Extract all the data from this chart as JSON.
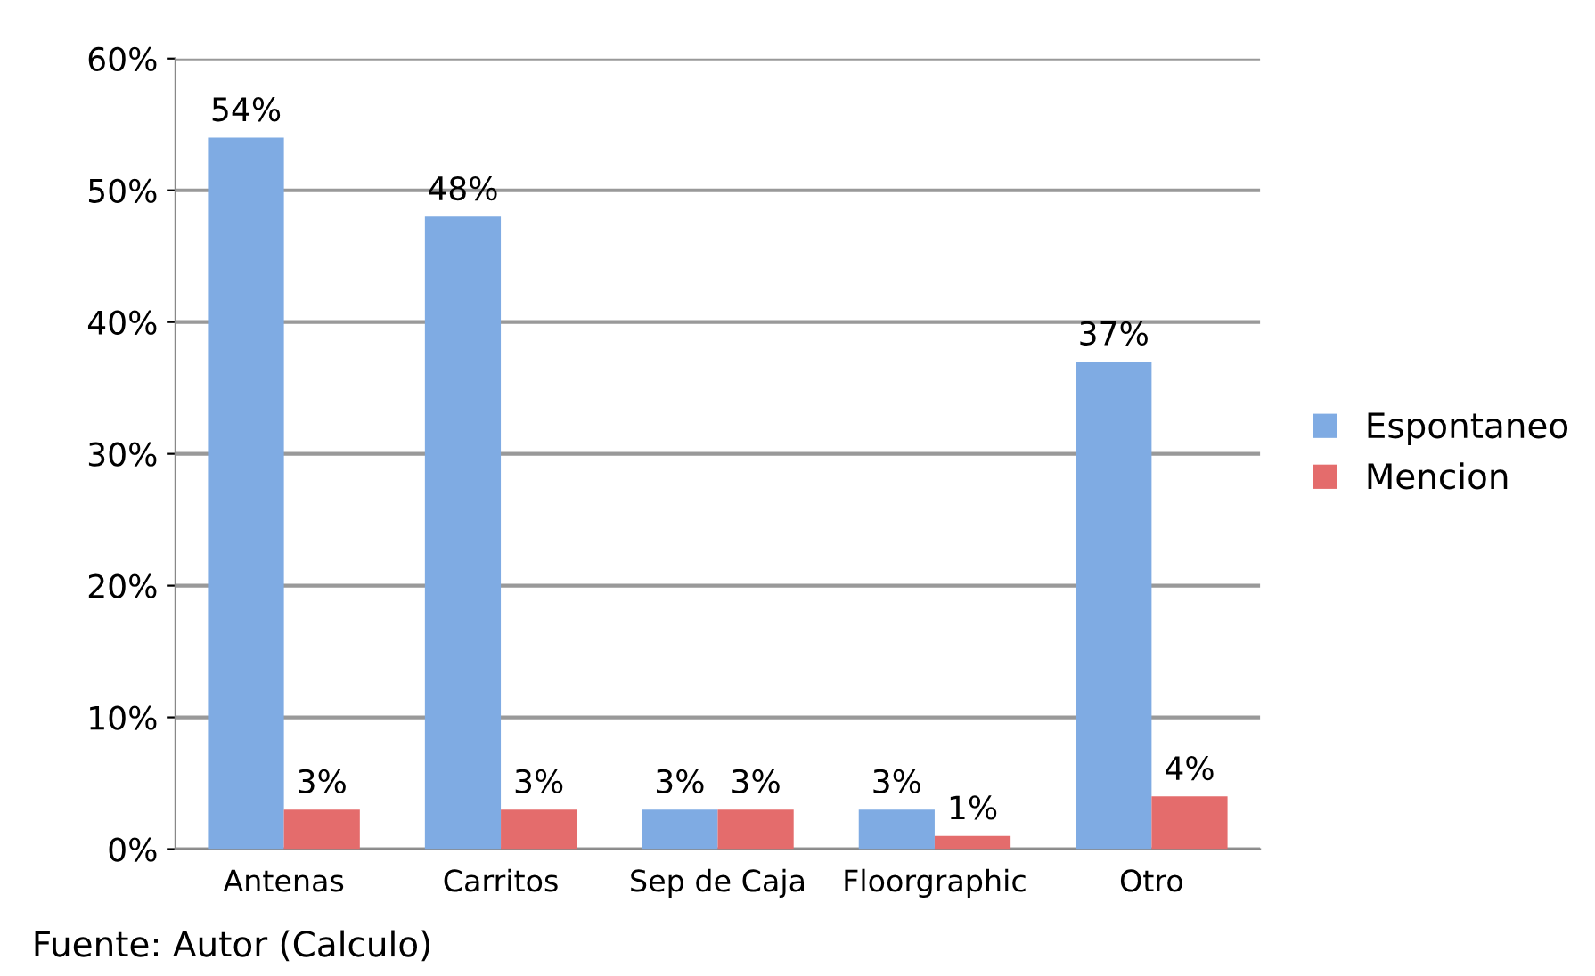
{
  "chart_data": {
    "type": "bar",
    "categories": [
      "Antenas",
      "Carritos",
      "Sep de Caja",
      "Floorgraphic",
      "Otro"
    ],
    "series": [
      {
        "name": "Espontaneo",
        "color": "#7fabe3",
        "values": [
          54,
          48,
          3,
          3,
          37
        ],
        "value_labels": [
          "54%",
          "48%",
          "3%",
          "3%",
          "37%"
        ]
      },
      {
        "name": "Mencion",
        "color": "#e46c6c",
        "values": [
          3,
          3,
          3,
          1,
          4
        ],
        "value_labels": [
          "3%",
          "3%",
          "3%",
          "1%",
          "4%"
        ]
      }
    ],
    "ylim": [
      0,
      60
    ],
    "yticks": [
      {
        "value": 0,
        "label": "0%"
      },
      {
        "value": 10,
        "label": "10%"
      },
      {
        "value": 20,
        "label": "20%"
      },
      {
        "value": 30,
        "label": "30%"
      },
      {
        "value": 40,
        "label": "40%"
      },
      {
        "value": 50,
        "label": "50%"
      },
      {
        "value": 60,
        "label": "60%"
      }
    ],
    "grid": "y",
    "legend": "right",
    "annotations": [
      "Fuente: Autor (Calculo)"
    ]
  }
}
